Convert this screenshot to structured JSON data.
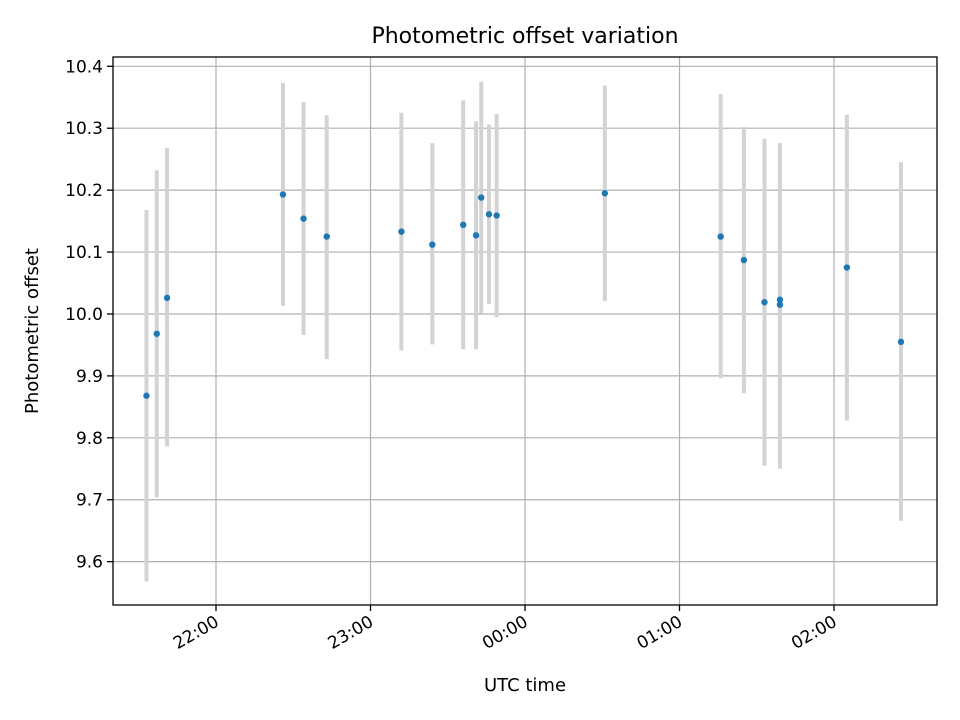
{
  "chart_data": {
    "type": "scatter",
    "title": "Photometric offset variation",
    "xlabel": "UTC time",
    "ylabel": "Photometric offset",
    "grid": true,
    "x_axis_kind": "time",
    "xlim": [
      "21:20",
      "02:40"
    ],
    "ylim": [
      9.53,
      10.415
    ],
    "x_ticks": [
      "22:00",
      "23:00",
      "00:00",
      "01:00",
      "02:00"
    ],
    "y_ticks": [
      "9.6",
      "9.7",
      "9.8",
      "9.9",
      "10.0",
      "10.1",
      "10.2",
      "10.3",
      "10.4"
    ],
    "point_color": "#1f77b4",
    "errorbar_color": "#d3d3d3",
    "points": [
      {
        "t": "21:33",
        "y": 9.868,
        "low": 9.568,
        "high": 10.168
      },
      {
        "t": "21:37",
        "y": 9.968,
        "low": 9.704,
        "high": 10.232
      },
      {
        "t": "21:41",
        "y": 10.026,
        "low": 9.786,
        "high": 10.268
      },
      {
        "t": "22:26",
        "y": 10.193,
        "low": 10.013,
        "high": 10.373
      },
      {
        "t": "22:34",
        "y": 10.154,
        "low": 9.966,
        "high": 10.342
      },
      {
        "t": "22:43",
        "y": 10.125,
        "low": 9.927,
        "high": 10.321
      },
      {
        "t": "23:12",
        "y": 10.133,
        "low": 9.941,
        "high": 10.325
      },
      {
        "t": "23:24",
        "y": 10.112,
        "low": 9.951,
        "high": 10.276
      },
      {
        "t": "23:36",
        "y": 10.144,
        "low": 9.943,
        "high": 10.345
      },
      {
        "t": "23:41",
        "y": 10.127,
        "low": 9.943,
        "high": 10.311
      },
      {
        "t": "23:43",
        "y": 10.188,
        "low": 10.001,
        "high": 10.375
      },
      {
        "t": "23:46",
        "y": 10.161,
        "low": 10.016,
        "high": 10.306
      },
      {
        "t": "23:49",
        "y": 10.159,
        "low": 9.995,
        "high": 10.323
      },
      {
        "t": "00:31",
        "y": 10.195,
        "low": 10.021,
        "high": 10.369
      },
      {
        "t": "01:16",
        "y": 10.125,
        "low": 9.896,
        "high": 10.355
      },
      {
        "t": "01:25",
        "y": 10.087,
        "low": 9.872,
        "high": 10.302
      },
      {
        "t": "01:33",
        "y": 10.019,
        "low": 9.755,
        "high": 10.283
      },
      {
        "t": "01:39",
        "y": 10.015,
        "low": 9.75,
        "high": 10.246
      },
      {
        "t": "01:39",
        "y": 10.023,
        "low": 9.77,
        "high": 10.276
      },
      {
        "t": "02:05",
        "y": 10.075,
        "low": 9.828,
        "high": 10.322
      },
      {
        "t": "02:26",
        "y": 9.955,
        "low": 9.666,
        "high": 10.245
      }
    ]
  }
}
